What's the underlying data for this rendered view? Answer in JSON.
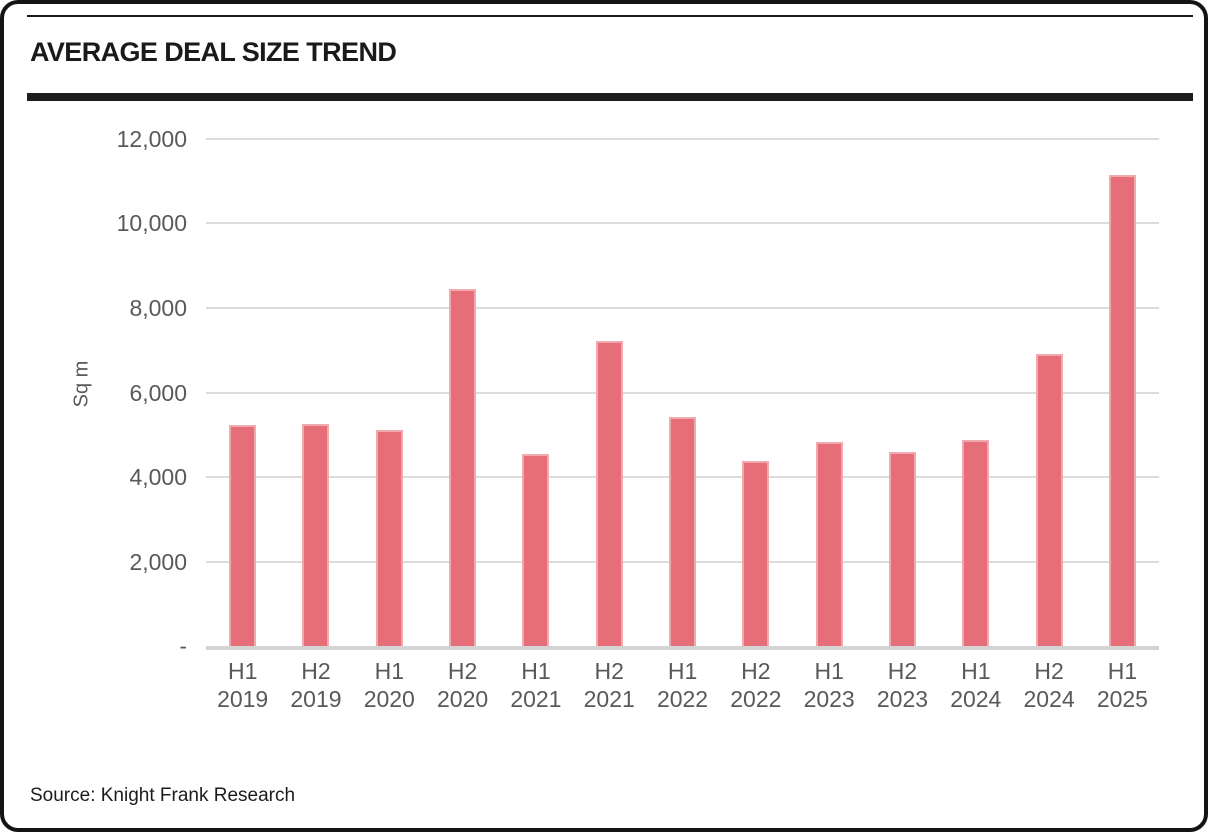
{
  "header": {
    "title": "AVERAGE DEAL SIZE TREND"
  },
  "footer": {
    "source_label": "Source: Knight Frank Research"
  },
  "chart_data": {
    "type": "bar",
    "title": "AVERAGE DEAL SIZE TREND",
    "xlabel": "",
    "ylabel": "Sq m",
    "ylim": [
      0,
      12000
    ],
    "y_tick_interval": 2000,
    "y_tick_labels": [
      "12,000",
      "10,000",
      "8,000",
      "6,000",
      "4,000",
      "2,000",
      "-"
    ],
    "grid": "horizontal",
    "legend": "none",
    "categories": [
      "H1 2019",
      "H2 2019",
      "H1 2020",
      "H2 2020",
      "H1 2021",
      "H2 2021",
      "H1 2022",
      "H2 2022",
      "H1 2023",
      "H2 2023",
      "H1 2024",
      "H2 2024",
      "H1 2025"
    ],
    "values": [
      5230,
      5260,
      5110,
      8440,
      4540,
      7220,
      5410,
      4370,
      4830,
      4590,
      4880,
      6900,
      11150
    ],
    "colors": {
      "bar_fill": "#e56e79",
      "bar_border": "#f0a9af",
      "gridline": "#dcdcdc",
      "axis_line": "#d4d4d4",
      "tick_text": "#595959",
      "title_text": "#1a1a1a"
    }
  }
}
